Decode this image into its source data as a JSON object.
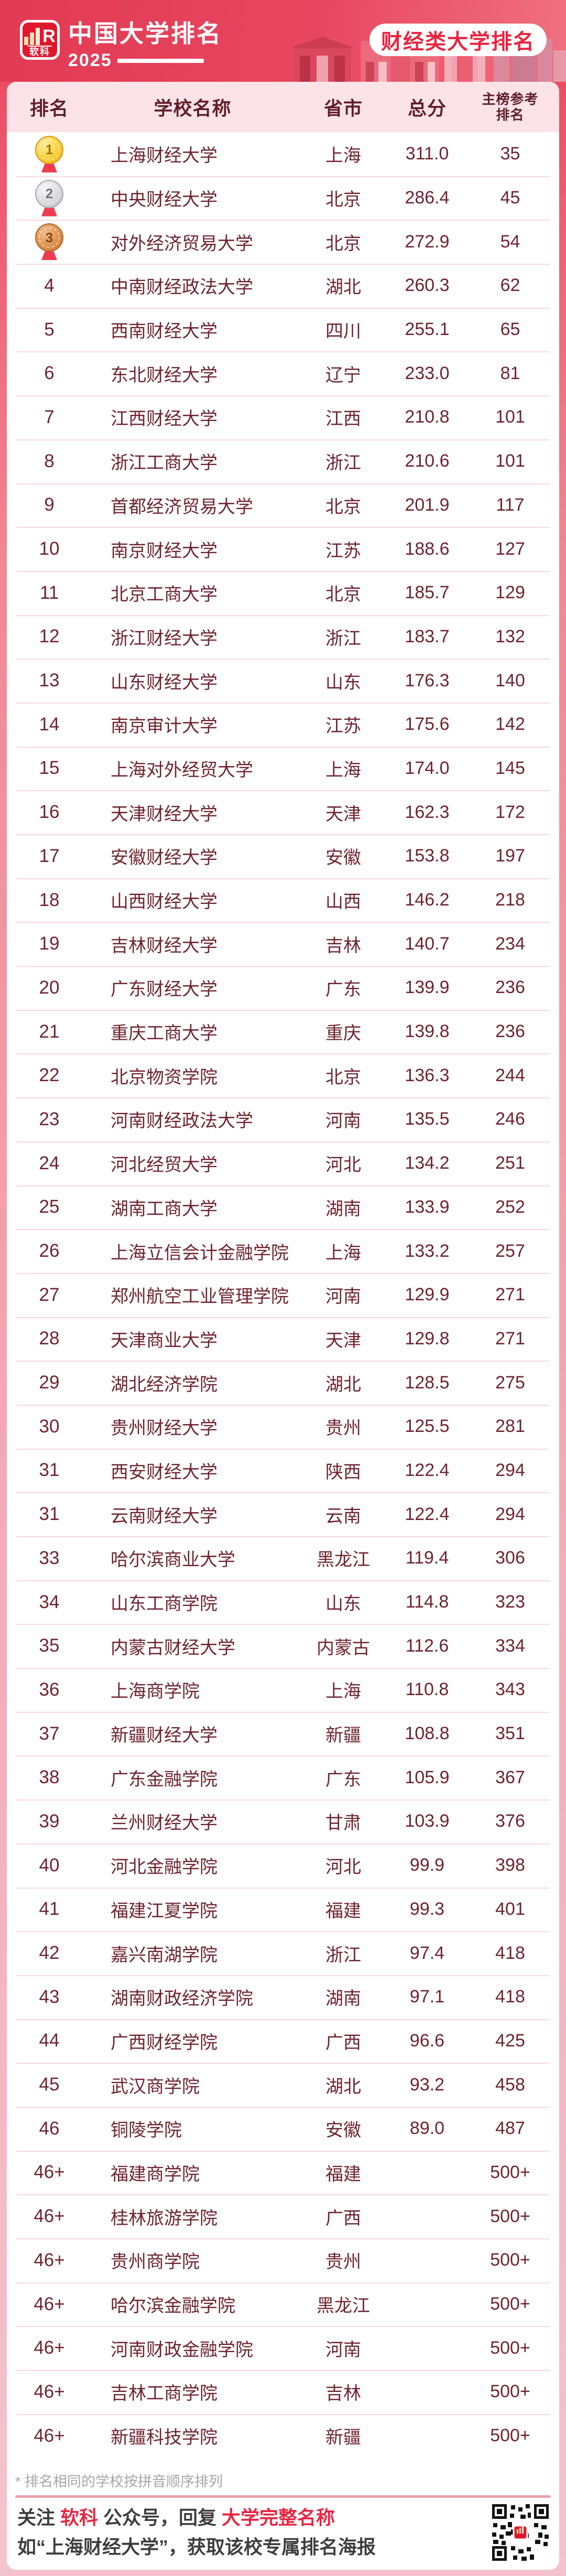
{
  "brand": {
    "logo_text": "软科",
    "logo_mark": "R",
    "title": "中国大学排名",
    "year": "2025"
  },
  "badge": "财经类大学排名",
  "table": {
    "headers": {
      "rank": "排名",
      "name": "学校名称",
      "province": "省市",
      "score": "总分",
      "ref1": "主榜参考",
      "ref2": "排名"
    },
    "rows": [
      {
        "rank": "1",
        "medal": "gold",
        "name": "上海财经大学",
        "province": "上海",
        "score": "311.0",
        "ref": "35"
      },
      {
        "rank": "2",
        "medal": "silver",
        "name": "中央财经大学",
        "province": "北京",
        "score": "286.4",
        "ref": "45"
      },
      {
        "rank": "3",
        "medal": "bronze",
        "name": "对外经济贸易大学",
        "province": "北京",
        "score": "272.9",
        "ref": "54"
      },
      {
        "rank": "4",
        "name": "中南财经政法大学",
        "province": "湖北",
        "score": "260.3",
        "ref": "62"
      },
      {
        "rank": "5",
        "name": "西南财经大学",
        "province": "四川",
        "score": "255.1",
        "ref": "65"
      },
      {
        "rank": "6",
        "name": "东北财经大学",
        "province": "辽宁",
        "score": "233.0",
        "ref": "81"
      },
      {
        "rank": "7",
        "name": "江西财经大学",
        "province": "江西",
        "score": "210.8",
        "ref": "101"
      },
      {
        "rank": "8",
        "name": "浙江工商大学",
        "province": "浙江",
        "score": "210.6",
        "ref": "101"
      },
      {
        "rank": "9",
        "name": "首都经济贸易大学",
        "province": "北京",
        "score": "201.9",
        "ref": "117"
      },
      {
        "rank": "10",
        "name": "南京财经大学",
        "province": "江苏",
        "score": "188.6",
        "ref": "127"
      },
      {
        "rank": "11",
        "name": "北京工商大学",
        "province": "北京",
        "score": "185.7",
        "ref": "129"
      },
      {
        "rank": "12",
        "name": "浙江财经大学",
        "province": "浙江",
        "score": "183.7",
        "ref": "132"
      },
      {
        "rank": "13",
        "name": "山东财经大学",
        "province": "山东",
        "score": "176.3",
        "ref": "140"
      },
      {
        "rank": "14",
        "name": "南京审计大学",
        "province": "江苏",
        "score": "175.6",
        "ref": "142"
      },
      {
        "rank": "15",
        "name": "上海对外经贸大学",
        "province": "上海",
        "score": "174.0",
        "ref": "145"
      },
      {
        "rank": "16",
        "name": "天津财经大学",
        "province": "天津",
        "score": "162.3",
        "ref": "172"
      },
      {
        "rank": "17",
        "name": "安徽财经大学",
        "province": "安徽",
        "score": "153.8",
        "ref": "197"
      },
      {
        "rank": "18",
        "name": "山西财经大学",
        "province": "山西",
        "score": "146.2",
        "ref": "218"
      },
      {
        "rank": "19",
        "name": "吉林财经大学",
        "province": "吉林",
        "score": "140.7",
        "ref": "234"
      },
      {
        "rank": "20",
        "name": "广东财经大学",
        "province": "广东",
        "score": "139.9",
        "ref": "236"
      },
      {
        "rank": "21",
        "name": "重庆工商大学",
        "province": "重庆",
        "score": "139.8",
        "ref": "236"
      },
      {
        "rank": "22",
        "name": "北京物资学院",
        "province": "北京",
        "score": "136.3",
        "ref": "244"
      },
      {
        "rank": "23",
        "name": "河南财经政法大学",
        "province": "河南",
        "score": "135.5",
        "ref": "246"
      },
      {
        "rank": "24",
        "name": "河北经贸大学",
        "province": "河北",
        "score": "134.2",
        "ref": "251"
      },
      {
        "rank": "25",
        "name": "湖南工商大学",
        "province": "湖南",
        "score": "133.9",
        "ref": "252"
      },
      {
        "rank": "26",
        "name": "上海立信会计金融学院",
        "province": "上海",
        "score": "133.2",
        "ref": "257"
      },
      {
        "rank": "27",
        "name": "郑州航空工业管理学院",
        "province": "河南",
        "score": "129.9",
        "ref": "271"
      },
      {
        "rank": "28",
        "name": "天津商业大学",
        "province": "天津",
        "score": "129.8",
        "ref": "271"
      },
      {
        "rank": "29",
        "name": "湖北经济学院",
        "province": "湖北",
        "score": "128.5",
        "ref": "275"
      },
      {
        "rank": "30",
        "name": "贵州财经大学",
        "province": "贵州",
        "score": "125.5",
        "ref": "281"
      },
      {
        "rank": "31",
        "name": "西安财经大学",
        "province": "陕西",
        "score": "122.4",
        "ref": "294"
      },
      {
        "rank": "31",
        "name": "云南财经大学",
        "province": "云南",
        "score": "122.4",
        "ref": "294"
      },
      {
        "rank": "33",
        "name": "哈尔滨商业大学",
        "province": "黑龙江",
        "score": "119.4",
        "ref": "306"
      },
      {
        "rank": "34",
        "name": "山东工商学院",
        "province": "山东",
        "score": "114.8",
        "ref": "323"
      },
      {
        "rank": "35",
        "name": "内蒙古财经大学",
        "province": "内蒙古",
        "score": "112.6",
        "ref": "334"
      },
      {
        "rank": "36",
        "name": "上海商学院",
        "province": "上海",
        "score": "110.8",
        "ref": "343"
      },
      {
        "rank": "37",
        "name": "新疆财经大学",
        "province": "新疆",
        "score": "108.8",
        "ref": "351"
      },
      {
        "rank": "38",
        "name": "广东金融学院",
        "province": "广东",
        "score": "105.9",
        "ref": "367"
      },
      {
        "rank": "39",
        "name": "兰州财经大学",
        "province": "甘肃",
        "score": "103.9",
        "ref": "376"
      },
      {
        "rank": "40",
        "name": "河北金融学院",
        "province": "河北",
        "score": "99.9",
        "ref": "398"
      },
      {
        "rank": "41",
        "name": "福建江夏学院",
        "province": "福建",
        "score": "99.3",
        "ref": "401"
      },
      {
        "rank": "42",
        "name": "嘉兴南湖学院",
        "province": "浙江",
        "score": "97.4",
        "ref": "418"
      },
      {
        "rank": "43",
        "name": "湖南财政经济学院",
        "province": "湖南",
        "score": "97.1",
        "ref": "418"
      },
      {
        "rank": "44",
        "name": "广西财经学院",
        "province": "广西",
        "score": "96.6",
        "ref": "425"
      },
      {
        "rank": "45",
        "name": "武汉商学院",
        "province": "湖北",
        "score": "93.2",
        "ref": "458"
      },
      {
        "rank": "46",
        "name": "铜陵学院",
        "province": "安徽",
        "score": "89.0",
        "ref": "487"
      },
      {
        "rank": "46+",
        "name": "福建商学院",
        "province": "福建",
        "score": "",
        "ref": "500+"
      },
      {
        "rank": "46+",
        "name": "桂林旅游学院",
        "province": "广西",
        "score": "",
        "ref": "500+"
      },
      {
        "rank": "46+",
        "name": "贵州商学院",
        "province": "贵州",
        "score": "",
        "ref": "500+"
      },
      {
        "rank": "46+",
        "name": "哈尔滨金融学院",
        "province": "黑龙江",
        "score": "",
        "ref": "500+"
      },
      {
        "rank": "46+",
        "name": "河南财政金融学院",
        "province": "河南",
        "score": "",
        "ref": "500+"
      },
      {
        "rank": "46+",
        "name": "吉林工商学院",
        "province": "吉林",
        "score": "",
        "ref": "500+"
      },
      {
        "rank": "46+",
        "name": "新疆科技学院",
        "province": "新疆",
        "score": "",
        "ref": "500+"
      }
    ]
  },
  "footnote": "* 排名相同的学校按拼音顺序排列",
  "footer": {
    "l1_1": "关注 ",
    "l1_2": "软科",
    "l1_3": " 公众号，回复 ",
    "l1_4": "大学完整名称",
    "line2": "如“上海财经大学”，获取该校专属排名海报"
  },
  "colors": {
    "brand_red": "#e8243f",
    "header_gradient_left": "#e23a53",
    "header_gradient_right": "#f0707f",
    "table_header_pink": "#fce3e7",
    "maroon_text": "#6e2430",
    "separator_pink": "#f8d9de",
    "divider_pink": "#ec9fae",
    "footnote_gray": "#a6a6a6"
  }
}
